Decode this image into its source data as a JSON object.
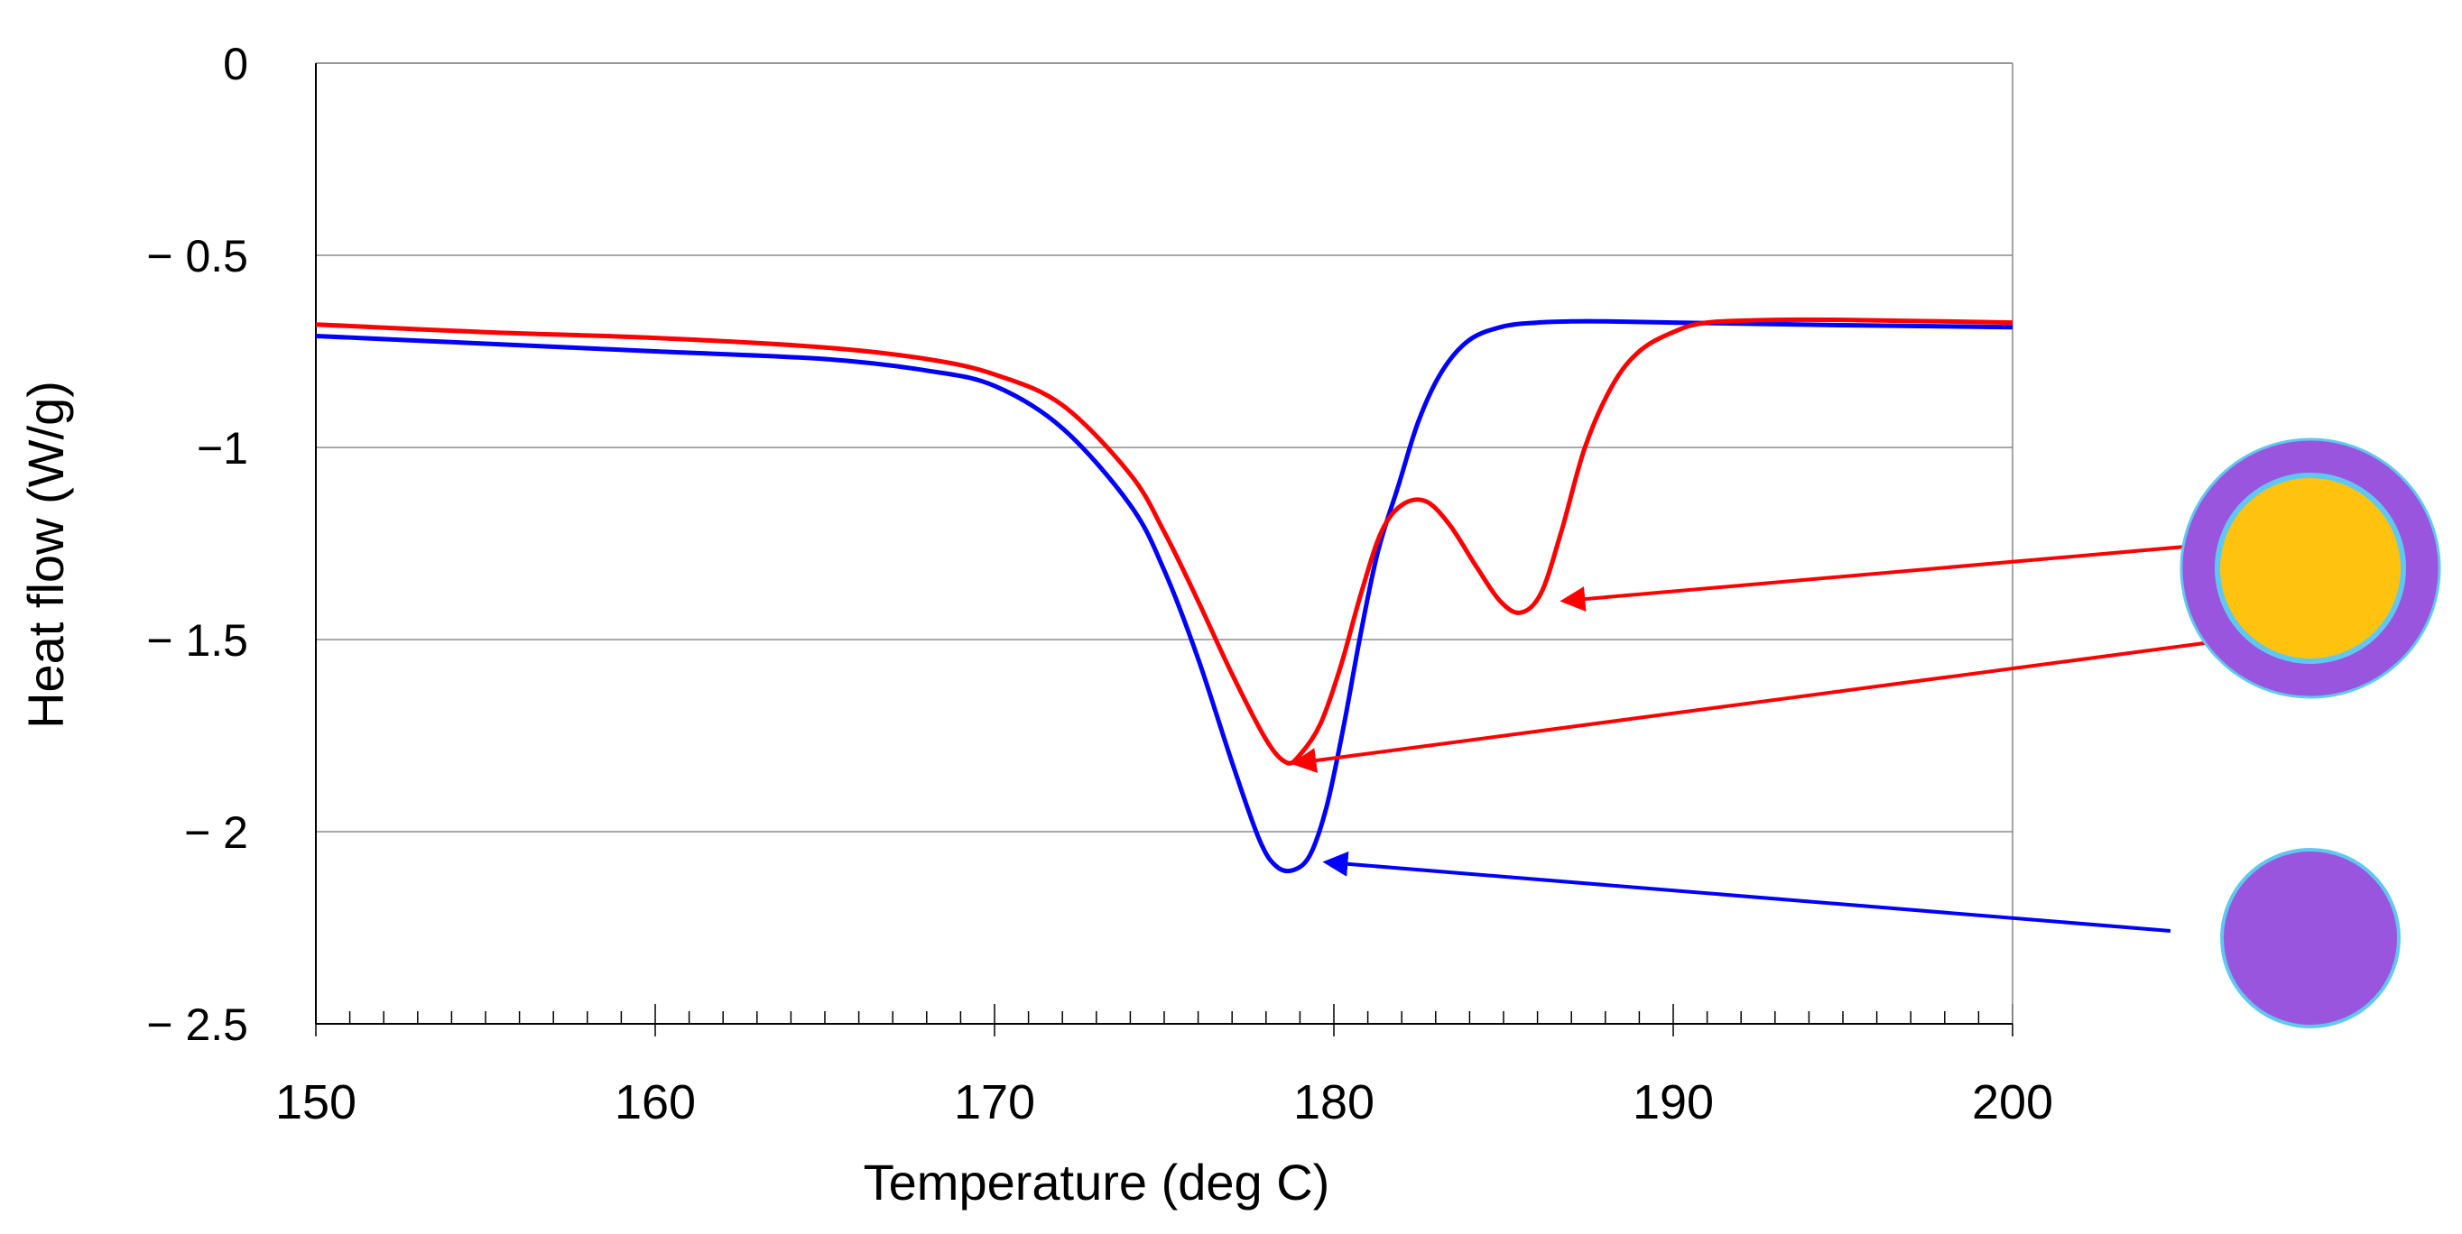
{
  "chart_data": {
    "type": "line",
    "title": "",
    "xlabel": "Temperature (deg C)",
    "ylabel": "Heat flow (W/g)",
    "xlim": [
      150,
      200
    ],
    "ylim": [
      -2.5,
      0
    ],
    "x_ticks": [
      150,
      160,
      170,
      180,
      190,
      200
    ],
    "x_tick_labels": [
      "150",
      "160",
      "170",
      "180",
      "190",
      "200"
    ],
    "y_ticks": [
      0,
      -0.5,
      -1,
      -1.5,
      -2,
      -2.5
    ],
    "y_tick_labels": [
      "0",
      "− 0.5",
      "−1",
      "− 1.5",
      "− 2",
      "− 2.5"
    ],
    "x_minor_step": 1,
    "grid": "horizontal",
    "series": [
      {
        "name": "core-shell particle",
        "color": "#ff0000",
        "x": [
          150,
          155,
          160,
          165,
          168,
          170,
          172,
          174,
          175,
          176,
          177,
          178,
          178.6,
          179,
          179.6,
          180.2,
          180.8,
          181.4,
          182,
          182.7,
          183.4,
          184.2,
          184.9,
          185.5,
          186.1,
          186.7,
          187.4,
          188.2,
          189,
          190,
          191,
          193,
          195,
          200
        ],
        "y": [
          -0.68,
          -0.7,
          -0.715,
          -0.74,
          -0.77,
          -0.81,
          -0.89,
          -1.07,
          -1.22,
          -1.4,
          -1.59,
          -1.76,
          -1.82,
          -1.8,
          -1.72,
          -1.57,
          -1.38,
          -1.22,
          -1.15,
          -1.14,
          -1.2,
          -1.31,
          -1.4,
          -1.43,
          -1.38,
          -1.22,
          -1.0,
          -0.84,
          -0.75,
          -0.7,
          -0.675,
          -0.668,
          -0.668,
          -0.675
        ]
      },
      {
        "name": "solid particle",
        "color": "#0000ff",
        "x": [
          150,
          155,
          160,
          165,
          168,
          170,
          172,
          174,
          175,
          176,
          177,
          177.8,
          178.3,
          178.8,
          179.3,
          179.8,
          180.3,
          180.8,
          181.3,
          181.9,
          182.5,
          183.2,
          184,
          185,
          186,
          187,
          188,
          190,
          192,
          195,
          200
        ],
        "y": [
          -0.71,
          -0.73,
          -0.75,
          -0.77,
          -0.8,
          -0.84,
          -0.95,
          -1.15,
          -1.32,
          -1.55,
          -1.82,
          -2.02,
          -2.09,
          -2.1,
          -2.06,
          -1.93,
          -1.72,
          -1.48,
          -1.27,
          -1.1,
          -0.93,
          -0.8,
          -0.72,
          -0.685,
          -0.675,
          -0.672,
          -0.672,
          -0.675,
          -0.678,
          -0.682,
          -0.687
        ]
      }
    ],
    "annotations": [
      {
        "type": "arrow",
        "color": "#ff0000",
        "from": "core-shell icon (core)",
        "to_x": 186.8,
        "to_y": -1.41
      },
      {
        "type": "arrow",
        "color": "#ff0000",
        "from": "core-shell icon (shell)",
        "to_x": 179.2,
        "to_y": -1.82
      },
      {
        "type": "arrow",
        "color": "#0000ff",
        "from": "solid particle icon",
        "to_x": 179.9,
        "to_y": -2.09
      }
    ],
    "legend_icons": [
      {
        "name": "core-shell particle",
        "shell_color": "#9a55de",
        "core_color": "#ffc20e",
        "outline_color": "#5fc8f0"
      },
      {
        "name": "solid particle",
        "fill_color": "#9a55de",
        "outline_color": "#5fc8f0"
      }
    ]
  }
}
